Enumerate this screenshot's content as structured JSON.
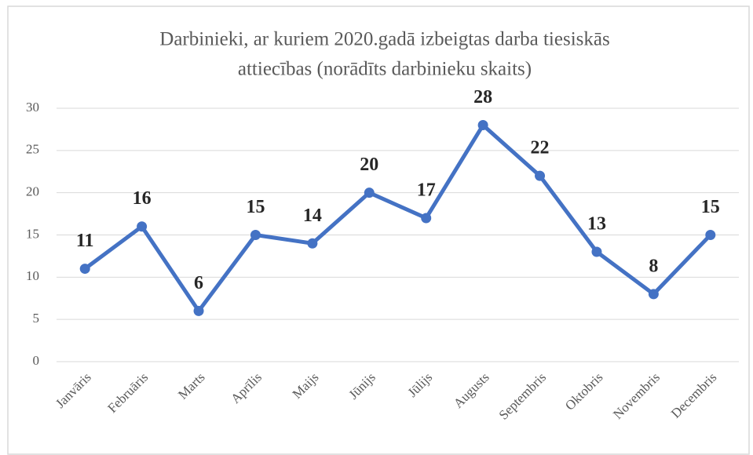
{
  "chart_data": {
    "type": "line",
    "title": [
      "Darbinieki, ar kuriem 2020.gadā izbeigtas darba tiesiskās",
      "attiecības (norādīts darbinieku skaits)"
    ],
    "categories": [
      "Janvāris",
      "Februāris",
      "Marts",
      "Aprīlis",
      "Maijs",
      "Jūnijs",
      "Jūlijs",
      "Augusts",
      "Septembris",
      "Oktobris",
      "Novembris",
      "Decembris"
    ],
    "values": [
      11,
      16,
      6,
      15,
      14,
      20,
      17,
      28,
      22,
      13,
      8,
      15
    ],
    "color": "#4472c4",
    "ylim": [
      0,
      30
    ],
    "yticks": [
      0,
      5,
      10,
      15,
      20,
      25,
      30
    ],
    "grid": true
  }
}
